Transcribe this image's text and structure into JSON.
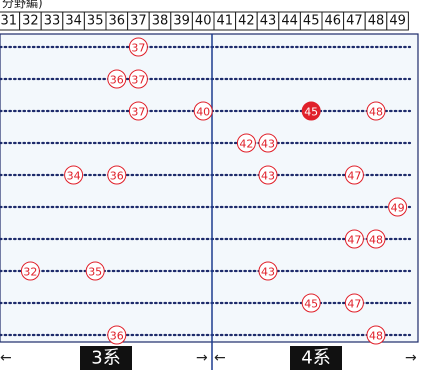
{
  "header": {
    "note": "分野編)",
    "columns": [
      31,
      32,
      33,
      34,
      35,
      36,
      37,
      38,
      39,
      40,
      41,
      42,
      43,
      44,
      45,
      46,
      47,
      48,
      49
    ]
  },
  "rows": [
    [
      37
    ],
    [
      36,
      37
    ],
    [
      37,
      40,
      45,
      48
    ],
    [
      42,
      43
    ],
    [
      34,
      36,
      43,
      47
    ],
    [
      49
    ],
    [
      47,
      48
    ],
    [
      32,
      35,
      43
    ],
    [
      45,
      47
    ],
    [
      36,
      48
    ]
  ],
  "filled_circle": {
    "row": 2,
    "index": 2
  },
  "footer": {
    "left_label": "3系",
    "right_label": "4系",
    "arrow_left": "←",
    "arrow_right": "→"
  }
}
